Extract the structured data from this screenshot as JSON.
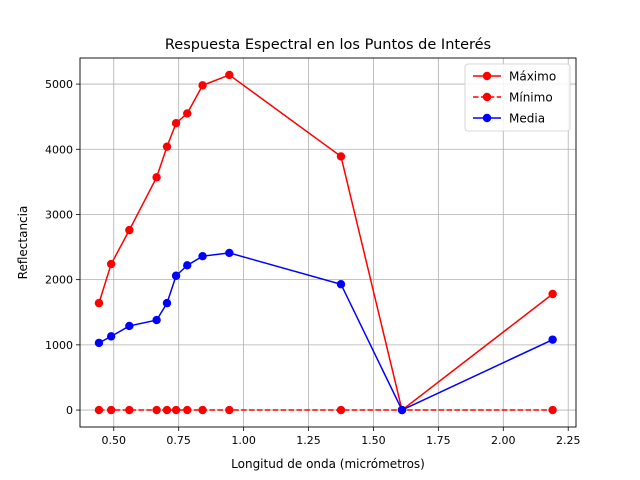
{
  "chart_data": {
    "type": "line",
    "title": "Respuesta Espectral en los Puntos de Interés",
    "xlabel": "Longitud de onda (micrómetros)",
    "ylabel": "Reflectancia",
    "xlim": [
      0.37,
      2.28
    ],
    "ylim": [
      -260,
      5400
    ],
    "xticks": [
      0.5,
      0.75,
      1.0,
      1.25,
      1.5,
      1.75,
      2.0,
      2.25
    ],
    "xtick_labels": [
      "0.50",
      "0.75",
      "1.00",
      "1.25",
      "1.50",
      "1.75",
      "2.00",
      "2.25"
    ],
    "yticks": [
      0,
      1000,
      2000,
      3000,
      4000,
      5000
    ],
    "ytick_labels": [
      "0",
      "1000",
      "2000",
      "3000",
      "4000",
      "5000"
    ],
    "grid": true,
    "legend_position": "top-right",
    "x": [
      0.443,
      0.49,
      0.56,
      0.665,
      0.705,
      0.74,
      0.783,
      0.842,
      0.945,
      1.375,
      1.61,
      2.19
    ],
    "series": [
      {
        "name": "Máximo",
        "color": "#ff0000",
        "linestyle": "solid",
        "marker": "circle",
        "values": [
          1640,
          2240,
          2760,
          3570,
          4040,
          4400,
          4550,
          4980,
          5140,
          3890,
          0,
          1780
        ]
      },
      {
        "name": "Mínimo",
        "color": "#ff0000",
        "linestyle": "dashed",
        "marker": "circle",
        "values": [
          0,
          0,
          0,
          0,
          0,
          0,
          0,
          0,
          0,
          0,
          0,
          0
        ]
      },
      {
        "name": "Media",
        "color": "#0000ff",
        "linestyle": "solid",
        "marker": "circle",
        "values": [
          1030,
          1130,
          1290,
          1380,
          1640,
          2060,
          2220,
          2360,
          2410,
          1930,
          0,
          1080
        ]
      }
    ]
  }
}
